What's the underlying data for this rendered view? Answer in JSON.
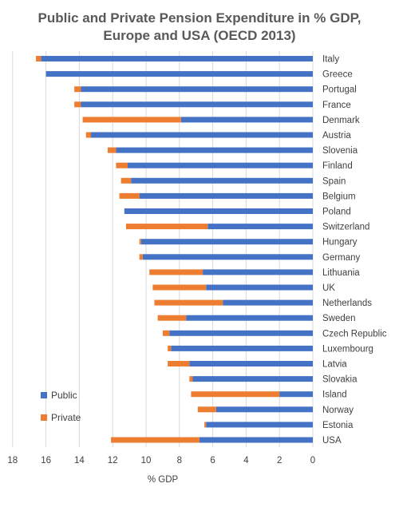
{
  "chart_data": {
    "type": "bar",
    "orientation": "horizontal",
    "stacked": true,
    "x_reversed": true,
    "title": [
      "Public and Private Pension Expenditure in % GDP,",
      "Europe and USA (OECD 2013)"
    ],
    "xlabel": "% GDP",
    "ylabel": "",
    "xlim": [
      0,
      18
    ],
    "x_ticks": [
      18,
      16,
      14,
      12,
      10,
      8,
      6,
      4,
      2,
      0
    ],
    "grid": "vertical",
    "legend_position": "left",
    "categories": [
      "Italy",
      "Greece",
      "Portugal",
      "France",
      "Denmark",
      "Austria",
      "Slovenia",
      "Finland",
      "Spain",
      "Belgium",
      "Poland",
      "Switzerland",
      "Hungary",
      "Germany",
      "Lithuania",
      "UK",
      "Netherlands",
      "Sweden",
      "Czech Republic",
      "Luxembourg",
      "Latvia",
      "Slovakia",
      "Island",
      "Norway",
      "Estonia",
      "USA"
    ],
    "series": [
      {
        "name": "Public",
        "color": "#4472c4",
        "values": [
          16.3,
          16.0,
          13.9,
          13.9,
          7.9,
          13.3,
          11.8,
          11.1,
          10.9,
          10.4,
          11.3,
          6.3,
          10.3,
          10.2,
          6.6,
          6.4,
          5.4,
          7.6,
          8.6,
          8.5,
          7.4,
          7.2,
          2.0,
          5.8,
          6.4,
          6.8
        ]
      },
      {
        "name": "Private",
        "color": "#ed7d31",
        "values": [
          0.3,
          0.0,
          0.4,
          0.4,
          5.9,
          0.3,
          0.5,
          0.7,
          0.6,
          1.2,
          0.0,
          4.9,
          0.1,
          0.2,
          3.2,
          3.2,
          4.1,
          1.7,
          0.4,
          0.2,
          1.3,
          0.2,
          5.3,
          1.1,
          0.1,
          5.3
        ]
      }
    ]
  }
}
